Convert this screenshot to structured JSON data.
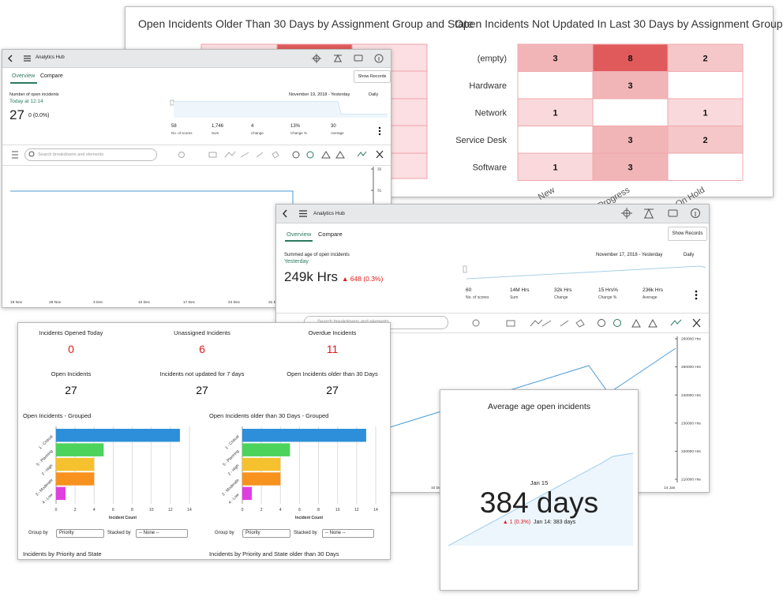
{
  "heatmaps": [
    {
      "title": "Open Incidents Older Than 30 Days by Assignment Group and State"
    },
    {
      "title": "Open Incidents Not Updated In Last 30 Days by Assignment Group",
      "rows": [
        "(empty)",
        "Hardware",
        "Network",
        "Service Desk",
        "Software"
      ],
      "columns": [
        "New",
        "In Progress",
        "On Hold"
      ],
      "values": [
        [
          3,
          8,
          2
        ],
        [
          null,
          3,
          null
        ],
        [
          1,
          null,
          1
        ],
        [
          null,
          3,
          2
        ],
        [
          1,
          3,
          null
        ]
      ]
    }
  ],
  "hub_1": {
    "app_title": "Analytics Hub",
    "tabs": [
      "Overview",
      "Compare"
    ],
    "button": "Show Records",
    "indicator": "Number of open incidents",
    "as_of": "Today at 12:14",
    "score": 27,
    "change": "0 (0.0%)",
    "date_range": "November 19, 2018 - Yesterday",
    "frequency": "Daily",
    "stats": [
      {
        "value": 58,
        "label": "No. of scores"
      },
      {
        "value": "1,746",
        "label": "Sum"
      },
      {
        "value": 4,
        "label": "Change"
      },
      {
        "value": "13%",
        "label": "Change %"
      },
      {
        "value": 30,
        "label": "Average"
      }
    ],
    "search_placeholder": "Search breakdowns and elements",
    "ylim": [
      26,
      32
    ],
    "yticks": [
      32,
      31
    ],
    "xlabels": [
      "19 Nov",
      "26 Nov",
      "3 Dec",
      "10 Dec",
      "17 Dec",
      "24 Dec",
      "31 Dec"
    ]
  },
  "hub_2": {
    "app_title": "Analytics Hub",
    "tabs": [
      "Overview",
      "Compare"
    ],
    "button": "Show Records",
    "indicator": "Summed age of open incidents",
    "as_of": "Yesterday",
    "score": "249k Hrs",
    "change": "▲ 648 (0.3%)",
    "date_range": "November 17, 2018 - Yesterday",
    "frequency": "Daily",
    "stats": [
      {
        "value": 60,
        "label": "No. of scores"
      },
      {
        "value": "14M Hrs",
        "label": "Sum"
      },
      {
        "value": "32k Hrs",
        "label": "Change"
      },
      {
        "value": "15 Hrs%",
        "label": "Change %"
      },
      {
        "value": "236k Hrs",
        "label": "Average"
      }
    ],
    "search_placeholder": "Search breakdowns and elements",
    "ylim": [
      210000,
      260000
    ],
    "yticks": [
      {
        "value": 260000,
        "label": "260000 Hrs"
      },
      {
        "value": 250000,
        "label": "250000 Hrs"
      },
      {
        "value": 240000,
        "label": "240000 Hrs"
      },
      {
        "value": 230000,
        "label": "230000 Hrs"
      },
      {
        "value": 220000,
        "label": "220000 Hrs"
      },
      {
        "value": 210000,
        "label": "210000 Hrs"
      }
    ],
    "xlabels": [
      "10 Dec",
      "14 Jan"
    ]
  },
  "dashboard": {
    "scores": [
      {
        "title": "Incidents Opened Today",
        "value": 0
      },
      {
        "title": "Unassigned Incidents",
        "value": 6
      },
      {
        "title": "Overdue Incidents",
        "value": 11
      },
      {
        "title": "Open Incidents",
        "value": 27
      },
      {
        "title": "Incidents not updated for 7 days",
        "value": 27
      },
      {
        "title": "Open Incidents older than 30 Days",
        "value": 27
      }
    ],
    "charts": [
      {
        "type": "bar",
        "title": "Open Incidents - Grouped",
        "categories": [
          "1 - Critical",
          "5 - Planning",
          "2 - High",
          "3 - Moderate",
          "4 - Low"
        ],
        "values": [
          13,
          5,
          4,
          4,
          1
        ],
        "colors": [
          "#2d8fd9",
          "#4cd35c",
          "#f6c12e",
          "#f7921f",
          "#e03fe0"
        ],
        "xlim": [
          0,
          14
        ],
        "xticks": [
          0,
          2,
          4,
          6,
          8,
          10,
          12,
          14
        ],
        "xlabel": "Incident Count",
        "group_by_label": "Group by",
        "group_by": "Priority",
        "stacked_by_label": "Stacked by",
        "stacked_by": "-- None --"
      },
      {
        "type": "bar",
        "title": "Open Incidents older than 30 Days - Grouped",
        "categories": [
          "1 - Critical",
          "5 - Planning",
          "2 - High",
          "3 - Moderate",
          "4 - Low"
        ],
        "values": [
          13,
          5,
          4,
          4,
          1
        ],
        "colors": [
          "#2d8fd9",
          "#4cd35c",
          "#f6c12e",
          "#f7921f",
          "#e03fe0"
        ],
        "xlim": [
          0,
          14
        ],
        "xticks": [
          0,
          2,
          4,
          6,
          8,
          10,
          12,
          14
        ],
        "xlabel": "Incident Count",
        "group_by_label": "Group by",
        "group_by": "Priority",
        "stacked_by_label": "Stacked by",
        "stacked_by": "-- None --"
      }
    ],
    "sections": [
      "Incidents by Priority and State",
      "Incidents by Priority and State older than 30 Days"
    ]
  },
  "average": {
    "title": "Average age open incidents",
    "date": "Jan 15",
    "value": "384 days",
    "change": "▲ 1 (0.3%)",
    "previous": "Jan 14: 383 days"
  }
}
